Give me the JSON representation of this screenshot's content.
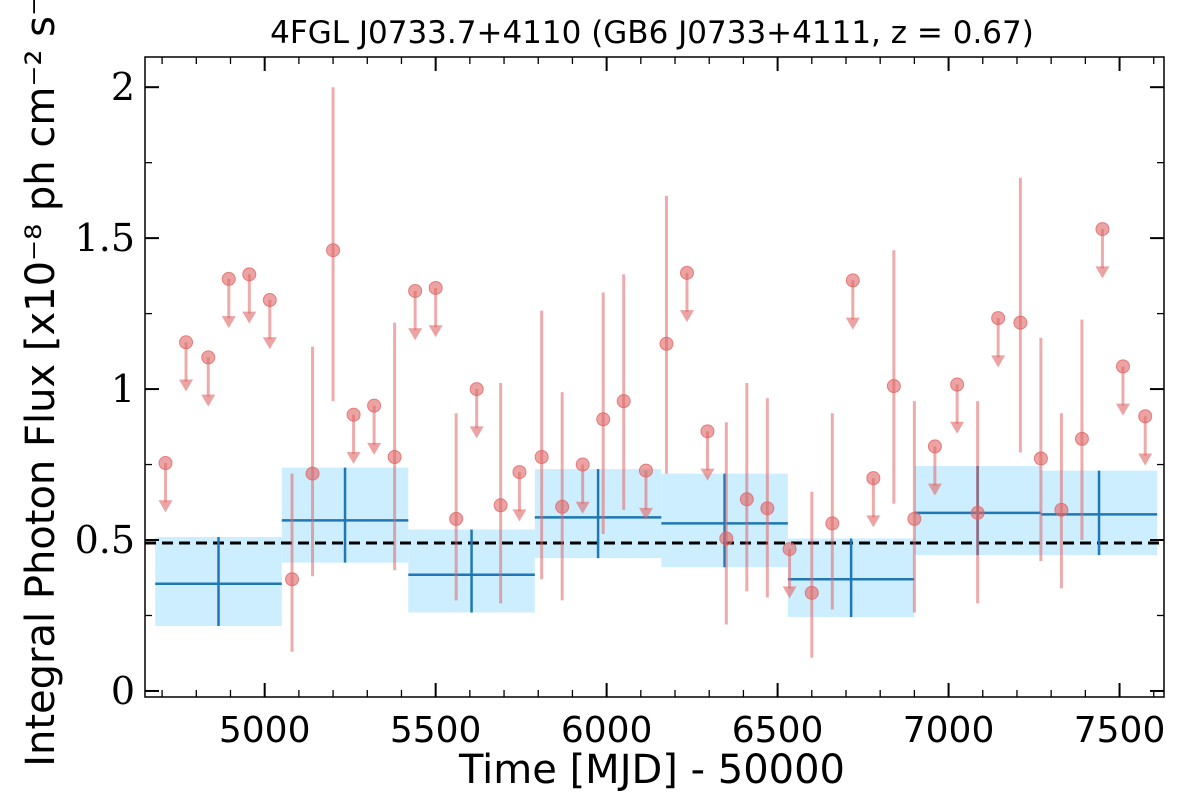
{
  "chart_data": {
    "type": "scatter",
    "title": "4FGL J0733.7+4110 (GB6 J0733+4111, z = 0.67)",
    "xlabel": "Time [MJD] - 50000",
    "ylabel": "Integral Photon Flux [x10⁻⁸ ph cm⁻² s⁻¹]",
    "xlim": [
      4650,
      7630
    ],
    "ylim": [
      -0.02,
      2.1
    ],
    "x_ticks": [
      5000,
      5500,
      6000,
      6500,
      7000,
      7500
    ],
    "x_tick_labels": [
      "5000",
      "5500",
      "6000",
      "6500",
      "7000",
      "7500"
    ],
    "y_ticks": [
      0,
      0.5,
      1,
      1.5,
      2
    ],
    "y_tick_labels": [
      "0",
      "0.5",
      "1",
      "1.5",
      "2"
    ],
    "grid": false,
    "mean_flux": 0.49,
    "colors": {
      "points": "#e06666",
      "bins_fill": "#cdeeff",
      "bins_line": "#1f77b4",
      "mean_line": "#000000"
    },
    "detections": [
      {
        "x": 5080,
        "y": 0.37,
        "lo": 0.13,
        "hi": 0.72
      },
      {
        "x": 5140,
        "y": 0.72,
        "lo": 0.38,
        "hi": 1.14
      },
      {
        "x": 5200,
        "y": 1.46,
        "lo": 0.96,
        "hi": 2.0
      },
      {
        "x": 5380,
        "y": 0.775,
        "lo": 0.4,
        "hi": 1.22
      },
      {
        "x": 5560,
        "y": 0.57,
        "lo": 0.3,
        "hi": 0.92
      },
      {
        "x": 5690,
        "y": 0.615,
        "lo": 0.29,
        "hi": 1.02
      },
      {
        "x": 5810,
        "y": 0.775,
        "lo": 0.37,
        "hi": 1.26
      },
      {
        "x": 5870,
        "y": 0.61,
        "lo": 0.3,
        "hi": 0.99
      },
      {
        "x": 5990,
        "y": 0.9,
        "lo": 0.52,
        "hi": 1.32
      },
      {
        "x": 6050,
        "y": 0.96,
        "lo": 0.6,
        "hi": 1.38
      },
      {
        "x": 6175,
        "y": 1.15,
        "lo": 0.72,
        "hi": 1.64
      },
      {
        "x": 6350,
        "y": 0.505,
        "lo": 0.22,
        "hi": 0.89
      },
      {
        "x": 6410,
        "y": 0.635,
        "lo": 0.33,
        "hi": 1.02
      },
      {
        "x": 6470,
        "y": 0.605,
        "lo": 0.31,
        "hi": 0.97
      },
      {
        "x": 6600,
        "y": 0.325,
        "lo": 0.11,
        "hi": 0.66
      },
      {
        "x": 6660,
        "y": 0.555,
        "lo": 0.27,
        "hi": 0.92
      },
      {
        "x": 6840,
        "y": 1.01,
        "lo": 0.62,
        "hi": 1.46
      },
      {
        "x": 6900,
        "y": 0.57,
        "lo": 0.26,
        "hi": 0.96
      },
      {
        "x": 7085,
        "y": 0.59,
        "lo": 0.29,
        "hi": 0.96
      },
      {
        "x": 7210,
        "y": 1.22,
        "lo": 0.79,
        "hi": 1.7
      },
      {
        "x": 7270,
        "y": 0.77,
        "lo": 0.43,
        "hi": 1.17
      },
      {
        "x": 7330,
        "y": 0.6,
        "lo": 0.34,
        "hi": 0.92
      },
      {
        "x": 7390,
        "y": 0.835,
        "lo": 0.5,
        "hi": 1.23
      }
    ],
    "upper_limits": [
      {
        "x": 4710,
        "y": 0.755
      },
      {
        "x": 4770,
        "y": 1.155
      },
      {
        "x": 4835,
        "y": 1.105
      },
      {
        "x": 4895,
        "y": 1.365
      },
      {
        "x": 4955,
        "y": 1.38
      },
      {
        "x": 5015,
        "y": 1.295
      },
      {
        "x": 5260,
        "y": 0.915
      },
      {
        "x": 5320,
        "y": 0.945
      },
      {
        "x": 5440,
        "y": 1.325
      },
      {
        "x": 5500,
        "y": 1.335
      },
      {
        "x": 5620,
        "y": 1.0
      },
      {
        "x": 5745,
        "y": 0.725
      },
      {
        "x": 5930,
        "y": 0.75
      },
      {
        "x": 6115,
        "y": 0.73
      },
      {
        "x": 6235,
        "y": 1.385
      },
      {
        "x": 6295,
        "y": 0.86
      },
      {
        "x": 6535,
        "y": 0.47
      },
      {
        "x": 6720,
        "y": 1.36
      },
      {
        "x": 6780,
        "y": 0.705
      },
      {
        "x": 6960,
        "y": 0.81
      },
      {
        "x": 7025,
        "y": 1.015
      },
      {
        "x": 7145,
        "y": 1.235
      },
      {
        "x": 7450,
        "y": 1.53
      },
      {
        "x": 7510,
        "y": 1.075
      },
      {
        "x": 7575,
        "y": 0.91
      }
    ],
    "bins": [
      {
        "x0": 4680,
        "x1": 5050,
        "y": 0.355,
        "lo": 0.215,
        "hi": 0.51
      },
      {
        "x0": 5050,
        "x1": 5420,
        "y": 0.565,
        "lo": 0.425,
        "hi": 0.74
      },
      {
        "x0": 5420,
        "x1": 5790,
        "y": 0.385,
        "lo": 0.26,
        "hi": 0.535
      },
      {
        "x0": 5790,
        "x1": 6160,
        "y": 0.575,
        "lo": 0.44,
        "hi": 0.735
      },
      {
        "x0": 6160,
        "x1": 6530,
        "y": 0.555,
        "lo": 0.41,
        "hi": 0.72
      },
      {
        "x0": 6530,
        "x1": 6900,
        "y": 0.37,
        "lo": 0.245,
        "hi": 0.505
      },
      {
        "x0": 6900,
        "x1": 7270,
        "y": 0.59,
        "lo": 0.45,
        "hi": 0.745
      },
      {
        "x0": 7270,
        "x1": 7610,
        "y": 0.585,
        "lo": 0.45,
        "hi": 0.73
      }
    ]
  }
}
